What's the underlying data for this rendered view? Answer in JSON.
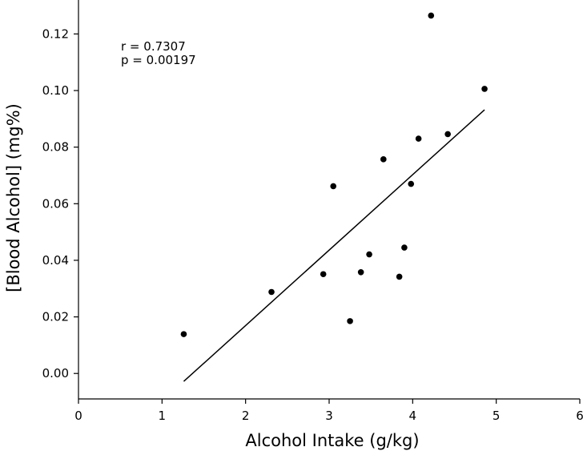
{
  "chart_data": {
    "type": "scatter",
    "xlabel": "Alcohol Intake (g/kg)",
    "ylabel": "[Blood Alcohol] (mg%)",
    "xlim": [
      0,
      6
    ],
    "ylim": [
      -0.009,
      0.132
    ],
    "x_ticks": [
      "0",
      "1",
      "2",
      "3",
      "4",
      "5",
      "6"
    ],
    "y_ticks": [
      "0.00",
      "0.02",
      "0.04",
      "0.06",
      "0.08",
      "0.10",
      "0.12"
    ],
    "points": [
      {
        "x": 1.26,
        "y": 0.0139
      },
      {
        "x": 2.31,
        "y": 0.0288
      },
      {
        "x": 2.93,
        "y": 0.0351
      },
      {
        "x": 3.05,
        "y": 0.0662
      },
      {
        "x": 3.25,
        "y": 0.0185
      },
      {
        "x": 3.38,
        "y": 0.0358
      },
      {
        "x": 3.48,
        "y": 0.0421
      },
      {
        "x": 3.65,
        "y": 0.0757
      },
      {
        "x": 3.84,
        "y": 0.0342
      },
      {
        "x": 3.9,
        "y": 0.0445
      },
      {
        "x": 3.98,
        "y": 0.067
      },
      {
        "x": 4.07,
        "y": 0.083
      },
      {
        "x": 4.22,
        "y": 0.1265
      },
      {
        "x": 4.42,
        "y": 0.0846
      },
      {
        "x": 4.86,
        "y": 0.1006
      }
    ],
    "fit_line": {
      "x": [
        1.26,
        4.86
      ],
      "y": [
        -0.0028,
        0.0932
      ]
    },
    "annotations": {
      "r_text": "r = 0.7307",
      "p_text": "p = 0.00197"
    },
    "grid": false,
    "point_color": "#000000",
    "line_color": "#000000"
  }
}
